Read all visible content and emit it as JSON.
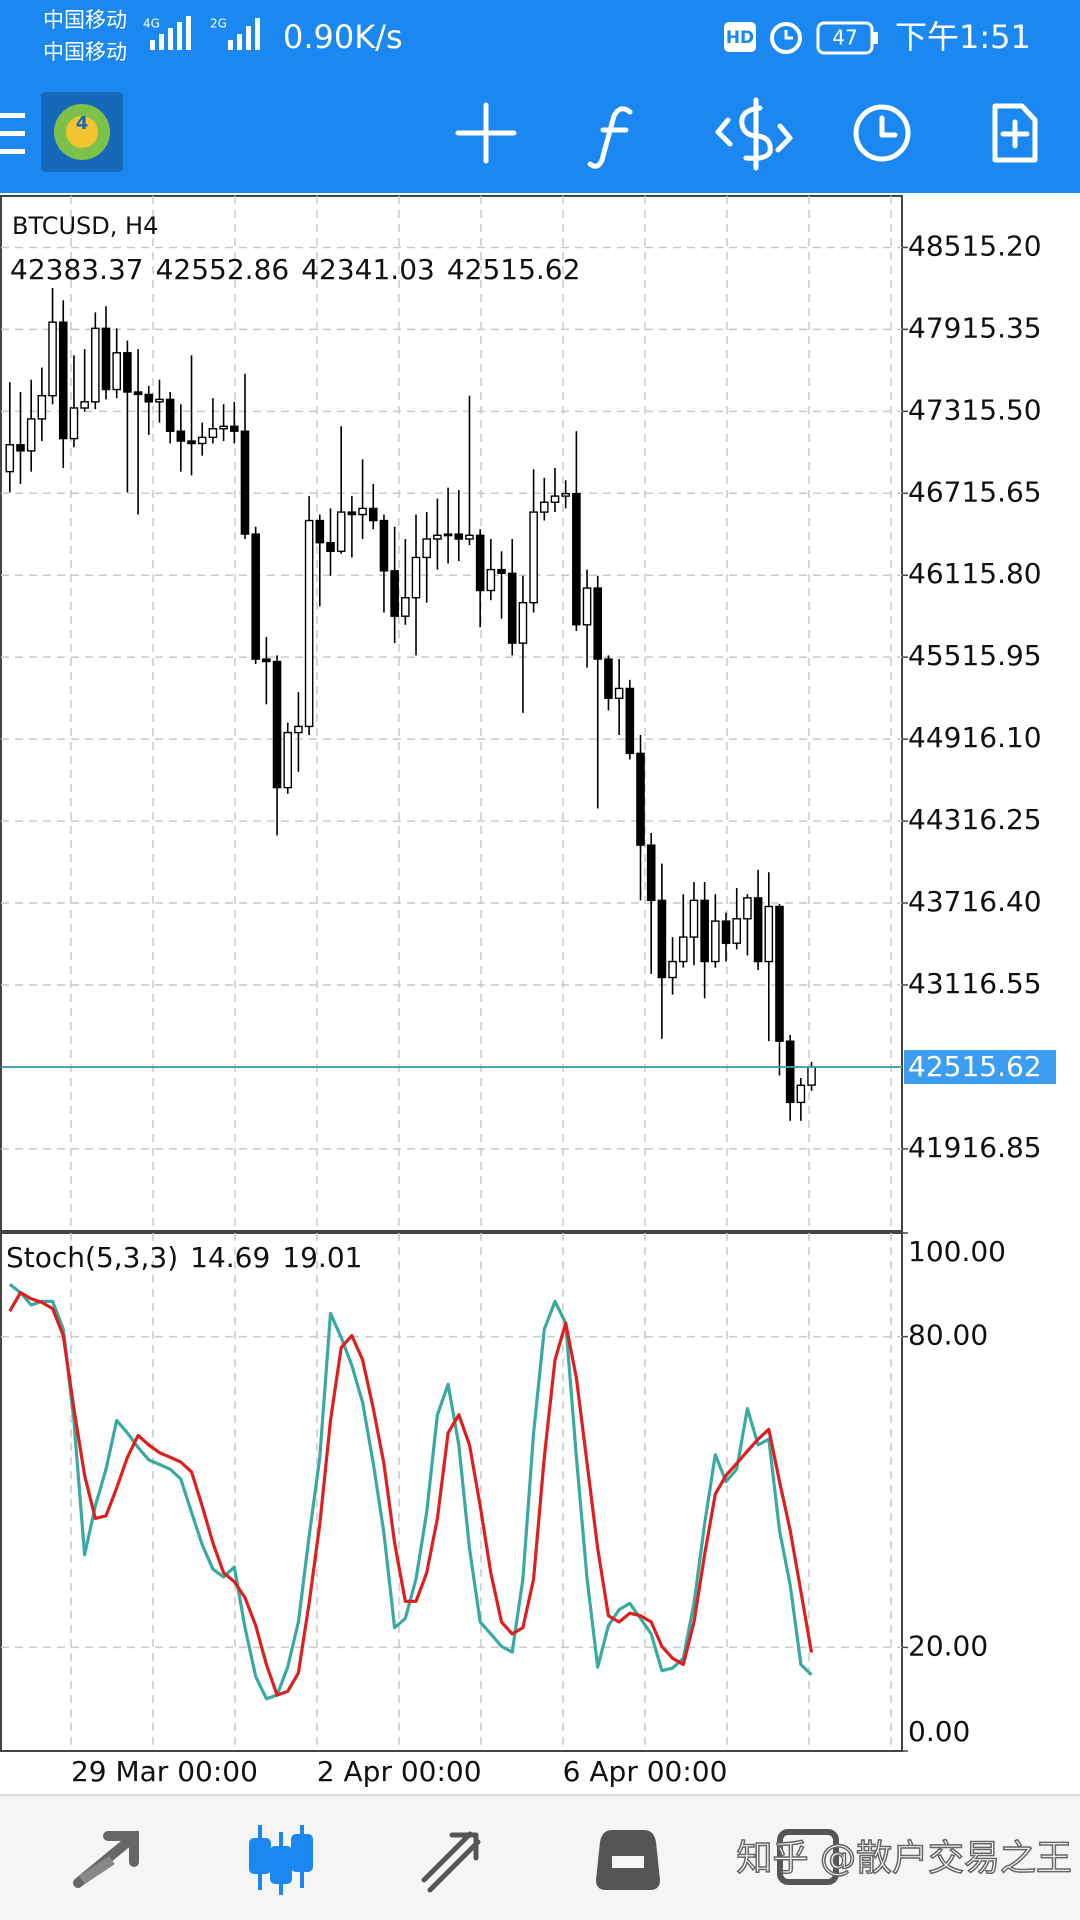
{
  "status_bar": {
    "carrier_1": "中国移动",
    "carrier_2": "中国移动",
    "network_1": "4G",
    "network_2": "2G",
    "speed": "0.90K/s",
    "hd": "HD",
    "battery": "47",
    "time": "下午1:51"
  },
  "watermark": "知乎 @散户交易之王",
  "chart_data": [
    {
      "type": "candlestick",
      "title": "BTCUSD, H4",
      "categories": [
        null,
        null,
        null,
        null,
        null,
        null,
        "29 Mar 00:00",
        null,
        null,
        null,
        null,
        null,
        null,
        null,
        null,
        null,
        null,
        null,
        null,
        null,
        null,
        null,
        null,
        null,
        null,
        null,
        null,
        null,
        null,
        "2 Apr 00:00",
        null,
        null,
        null,
        null,
        null,
        null,
        null,
        null,
        null,
        null,
        null,
        null,
        null,
        null,
        null,
        null,
        null,
        null,
        null,
        null,
        null,
        null,
        "6 Apr 00:00",
        null,
        null,
        null,
        null,
        null,
        null,
        null,
        null,
        null,
        null,
        null,
        null,
        null,
        null,
        null,
        null,
        null,
        null,
        null,
        null,
        null,
        null,
        null
      ],
      "open": [
        46874,
        47071,
        47026,
        47260,
        47430,
        47968,
        47116,
        47340,
        47385,
        47923,
        47475,
        47744,
        47457,
        47439,
        47385,
        47403,
        47170,
        47098,
        47080,
        47125,
        47188,
        47206,
        47170,
        46417,
        45502,
        45484,
        44561,
        44964,
        45009,
        46516,
        46354,
        46291,
        46578,
        46560,
        46605,
        46516,
        46148,
        45816,
        45951,
        46246,
        46381,
        46408,
        46417,
        46381,
        46408,
        46004,
        46157,
        46130,
        45619,
        45915,
        46578,
        46650,
        46695,
        46713,
        45753,
        46022,
        45502,
        45215,
        45287,
        44812,
        44140,
        43736,
        43171,
        43288,
        43467,
        43736,
        43288,
        43584,
        43422,
        43601,
        43754,
        43288,
        43691,
        42705,
        42257,
        42383.37
      ],
      "high": [
        47529,
        47457,
        47547,
        47636,
        48219,
        48129,
        47726,
        47771,
        48040,
        48085,
        47923,
        47834,
        47771,
        47502,
        47547,
        47457,
        47367,
        47726,
        47233,
        47412,
        47367,
        47385,
        47591,
        46471,
        45664,
        45529,
        45036,
        45260,
        46695,
        46560,
        46605,
        47206,
        46695,
        46964,
        46784,
        46560,
        46471,
        46381,
        46560,
        46578,
        46677,
        46757,
        46740,
        47430,
        46453,
        46381,
        46291,
        46381,
        46112,
        46892,
        46829,
        46901,
        46811,
        47170,
        46157,
        46112,
        45529,
        45502,
        45350,
        44946,
        44229,
        44005,
        43467,
        43781,
        43870,
        43870,
        43781,
        43646,
        43826,
        43781,
        43960,
        43942,
        43709,
        42750,
        42436,
        42552.86
      ],
      "low": [
        46722,
        46784,
        46874,
        47098,
        47367,
        46901,
        47053,
        47313,
        47331,
        47403,
        47412,
        46722,
        46560,
        47143,
        47233,
        47080,
        46874,
        46847,
        46991,
        47080,
        47098,
        47080,
        46381,
        45466,
        45171,
        44211,
        44516,
        44677,
        44946,
        45888,
        46112,
        46273,
        46246,
        46381,
        46453,
        45843,
        45619,
        45753,
        45529,
        45915,
        46157,
        46202,
        46220,
        46336,
        45735,
        45933,
        45798,
        45529,
        45108,
        45843,
        46516,
        46578,
        46605,
        45708,
        45440,
        44408,
        45126,
        44946,
        44767,
        43736,
        43198,
        42723,
        43046,
        43243,
        43261,
        43019,
        43243,
        43288,
        43377,
        43333,
        43225,
        42705,
        42454,
        42122,
        42122,
        42341.03
      ],
      "close": [
        47071,
        47026,
        47260,
        47430,
        47968,
        47116,
        47340,
        47385,
        47923,
        47475,
        47744,
        47457,
        47439,
        47385,
        47403,
        47170,
        47098,
        47080,
        47125,
        47188,
        47206,
        47170,
        46417,
        45502,
        45484,
        44561,
        44964,
        45009,
        46516,
        46354,
        46291,
        46578,
        46560,
        46605,
        46516,
        46148,
        45816,
        45951,
        46246,
        46381,
        46408,
        46417,
        46381,
        46408,
        46004,
        46157,
        46130,
        45619,
        45915,
        46578,
        46650,
        46695,
        46713,
        45753,
        46022,
        45502,
        45215,
        45287,
        44812,
        44140,
        43736,
        43171,
        43288,
        43467,
        43736,
        43288,
        43584,
        43422,
        43601,
        43754,
        43288,
        43691,
        42705,
        42257,
        42382,
        42515.62
      ],
      "up_color": "#ffffff",
      "down_color": "#000000",
      "price_line_color": "#3f9ea6",
      "price_label_color": "#3d9df3",
      "ylim": [
        41315.5,
        48891.8
      ],
      "yticks": [
        {
          "value": 48515.2,
          "label": "48515.20"
        },
        47915.35,
        {
          "value": 47315.5,
          "label": "47315.50"
        },
        46715.65,
        {
          "value": 46115.8,
          "label": "46115.80"
        },
        45515.95,
        {
          "value": 44916.1,
          "label": "44916.10"
        },
        44316.25,
        {
          "value": 43716.4,
          "label": "43716.40"
        },
        43116.55,
        41916.85
      ],
      "grid": true
    },
    {
      "type": "line",
      "title": "Stoch(5,3,3)",
      "series": [
        {
          "color": "#3aa9a1",
          "values": [
            90.1,
            88.5,
            86.1,
            86.8,
            86.8,
            81.4,
            63.8,
            37.9,
            47.3,
            54.4,
            63.8,
            61.4,
            58.6,
            56.2,
            55.3,
            54.4,
            52.5,
            46.1,
            39.8,
            35.1,
            33.6,
            35.5,
            23.8,
            14.4,
            10.1,
            10.8,
            16.2,
            24.9,
            41.4,
            56.7,
            84.5,
            79.8,
            74.4,
            67.3,
            55.5,
            42.1,
            23.8,
            25.6,
            33.2,
            46.1,
            64.9,
            70.8,
            59.1,
            39.1,
            24.9,
            22.6,
            20.2,
            19.1,
            33.2,
            61.4,
            81.4,
            86.8,
            82.6,
            56.7,
            33.2,
            16.2,
            24.2,
            27.3,
            28.5,
            25.6,
            22.6,
            15.5,
            16.0,
            17.9,
            28.5,
            43.8,
            57.2,
            52.0,
            54.4,
            66.1,
            59.1,
            60.2,
            42.6,
            32.0,
            16.7,
            14.69
          ]
        },
        {
          "color": "#dc1f1f",
          "values": [
            84.9,
            88.5,
            87.3,
            86.6,
            85.4,
            80.2,
            66.1,
            53.2,
            44.9,
            45.4,
            50.8,
            56.7,
            60.9,
            59.1,
            57.6,
            56.7,
            55.8,
            53.9,
            47.3,
            40.2,
            34.4,
            32.7,
            29.6,
            24.2,
            16.7,
            10.8,
            11.5,
            15.1,
            28.5,
            43.8,
            63.8,
            77.9,
            80.2,
            75.5,
            66.1,
            55.5,
            40.2,
            28.9,
            28.9,
            34.4,
            44.9,
            61.4,
            64.9,
            59.1,
            47.3,
            34.4,
            24.9,
            22.6,
            23.8,
            33.2,
            56.7,
            75.5,
            82.6,
            72.0,
            55.5,
            39.1,
            26.1,
            24.9,
            26.6,
            26.1,
            24.9,
            20.2,
            17.9,
            16.7,
            24.9,
            37.9,
            49.6,
            53.2,
            55.5,
            57.9,
            60.2,
            62.1,
            52.0,
            42.6,
            30.8,
            19.01
          ]
        }
      ],
      "ylim": [
        0,
        100
      ],
      "yticks": [
        {
          "value": 100,
          "label": "100.00"
        },
        {
          "value": 80,
          "label": "80.00"
        },
        {
          "value": 20,
          "label": "20.00"
        },
        {
          "value": 0,
          "label": "0.00"
        }
      ],
      "grid": true
    }
  ]
}
